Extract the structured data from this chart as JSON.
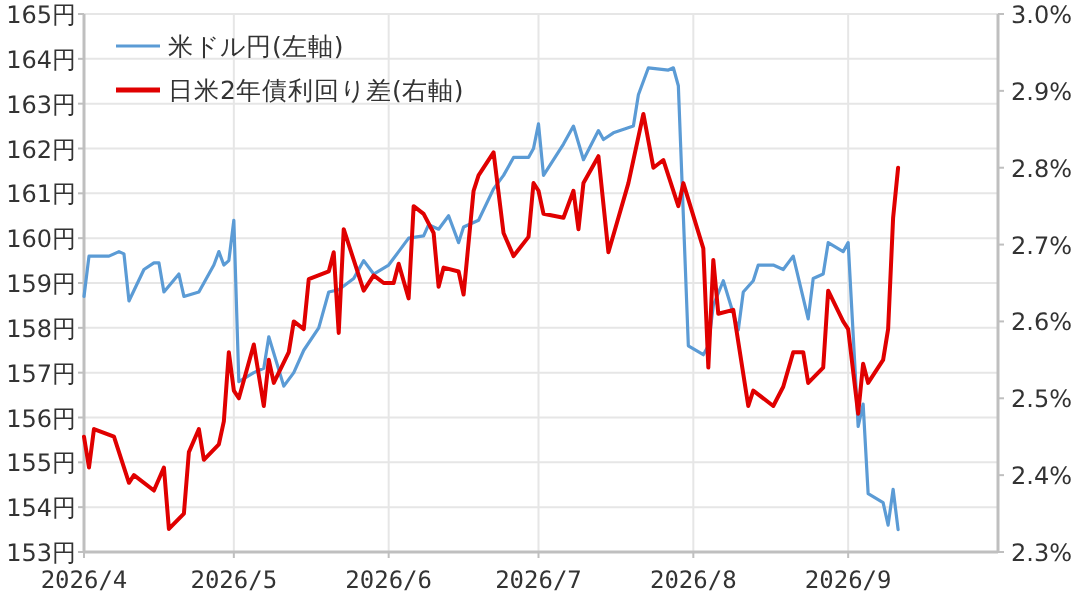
{
  "chart_data": {
    "type": "line",
    "xlim": [
      "2026-04-01",
      "2026-10-01"
    ],
    "xticks": [
      {
        "value": "2026-04-01",
        "label": "2026/4"
      },
      {
        "value": "2026-05-01",
        "label": "2026/5"
      },
      {
        "value": "2026-06-01",
        "label": "2026/6"
      },
      {
        "value": "2026-07-01",
        "label": "2026/7"
      },
      {
        "value": "2026-08-01",
        "label": "2026/8"
      },
      {
        "value": "2026-09-01",
        "label": "2026/9"
      }
    ],
    "ylim": [
      153,
      165
    ],
    "yticks": [
      {
        "value": 153,
        "label": "153円"
      },
      {
        "value": 154,
        "label": "154円"
      },
      {
        "value": 155,
        "label": "155円"
      },
      {
        "value": 156,
        "label": "156円"
      },
      {
        "value": 157,
        "label": "157円"
      },
      {
        "value": 158,
        "label": "158円"
      },
      {
        "value": 159,
        "label": "159円"
      },
      {
        "value": 160,
        "label": "160円"
      },
      {
        "value": 161,
        "label": "161円"
      },
      {
        "value": 162,
        "label": "162円"
      },
      {
        "value": 163,
        "label": "163円"
      },
      {
        "value": 164,
        "label": "164円"
      },
      {
        "value": 165,
        "label": "165円"
      }
    ],
    "y2lim": [
      2.3,
      3.0
    ],
    "y2ticks": [
      {
        "value": 2.3,
        "label": "2.3%"
      },
      {
        "value": 2.4,
        "label": "2.4%"
      },
      {
        "value": 2.5,
        "label": "2.5%"
      },
      {
        "value": 2.6,
        "label": "2.6%"
      },
      {
        "value": 2.7,
        "label": "2.7%"
      },
      {
        "value": 2.8,
        "label": "2.8%"
      },
      {
        "value": 2.9,
        "label": "2.9%"
      },
      {
        "value": 3.0,
        "label": "3.0%"
      }
    ],
    "grid": true,
    "legend": "top left",
    "marker": "none",
    "line_style": "solid",
    "series": [
      {
        "name": "米ドル円(左軸)",
        "color": "#5b9bd5",
        "x": [
          "2026-04-01",
          "2026-04-02",
          "2026-04-06",
          "2026-04-08",
          "2026-04-09",
          "2026-04-10",
          "2026-04-13",
          "2026-04-15",
          "2026-04-16",
          "2026-04-17",
          "2026-04-20",
          "2026-04-21",
          "2026-04-24",
          "2026-04-27",
          "2026-04-28",
          "2026-04-29",
          "2026-04-30",
          "2026-05-01",
          "2026-05-02",
          "2026-05-05",
          "2026-05-07",
          "2026-05-08",
          "2026-05-11",
          "2026-05-13",
          "2026-05-15",
          "2026-05-18",
          "2026-05-20",
          "2026-05-22",
          "2026-05-25",
          "2026-05-27",
          "2026-05-29",
          "2026-06-01",
          "2026-06-03",
          "2026-06-05",
          "2026-06-08",
          "2026-06-09",
          "2026-06-11",
          "2026-06-13",
          "2026-06-15",
          "2026-06-16",
          "2026-06-19",
          "2026-06-22",
          "2026-06-24",
          "2026-06-25",
          "2026-06-26",
          "2026-06-29",
          "2026-06-30",
          "2026-07-01",
          "2026-07-02",
          "2026-07-06",
          "2026-07-08",
          "2026-07-10",
          "2026-07-13",
          "2026-07-14",
          "2026-07-16",
          "2026-07-20",
          "2026-07-21",
          "2026-07-23",
          "2026-07-27",
          "2026-07-28",
          "2026-07-29",
          "2026-07-31",
          "2026-08-03",
          "2026-08-04",
          "2026-08-05",
          "2026-08-07",
          "2026-08-10",
          "2026-08-11",
          "2026-08-13",
          "2026-08-14",
          "2026-08-17",
          "2026-08-19",
          "2026-08-21",
          "2026-08-24",
          "2026-08-25",
          "2026-08-27",
          "2026-08-28",
          "2026-08-31",
          "2026-09-01",
          "2026-09-03",
          "2026-09-04",
          "2026-09-05",
          "2026-09-08",
          "2026-09-09",
          "2026-09-10",
          "2026-09-11"
        ],
        "values": [
          158.7,
          159.6,
          159.6,
          159.7,
          159.65,
          158.6,
          159.3,
          159.45,
          159.45,
          158.8,
          159.2,
          158.7,
          158.8,
          159.4,
          159.7,
          159.4,
          159.5,
          160.4,
          156.8,
          157.0,
          157.1,
          157.8,
          156.7,
          157.0,
          157.5,
          158.0,
          158.8,
          158.85,
          159.1,
          159.5,
          159.2,
          159.4,
          159.7,
          160.0,
          160.05,
          160.3,
          160.2,
          160.5,
          159.9,
          160.25,
          160.4,
          161.1,
          161.4,
          161.6,
          161.8,
          161.8,
          162.0,
          162.55,
          161.4,
          162.1,
          162.5,
          161.75,
          162.4,
          162.2,
          162.35,
          162.5,
          163.2,
          163.8,
          163.75,
          163.8,
          163.4,
          157.6,
          157.4,
          157.6,
          158.5,
          159.05,
          157.95,
          158.8,
          159.05,
          159.4,
          159.4,
          159.3,
          159.6,
          158.2,
          159.1,
          159.2,
          159.9,
          159.7,
          159.9,
          155.8,
          156.3,
          154.3,
          154.1,
          153.6,
          154.4,
          153.5
        ]
      },
      {
        "name": "日米2年債利回り差(右軸)",
        "color": "#e00000",
        "axis": "y2",
        "x": [
          "2026-04-01",
          "2026-04-02",
          "2026-04-03",
          "2026-04-07",
          "2026-04-10",
          "2026-04-11",
          "2026-04-15",
          "2026-04-17",
          "2026-04-18",
          "2026-04-21",
          "2026-04-22",
          "2026-04-24",
          "2026-04-25",
          "2026-04-28",
          "2026-04-29",
          "2026-04-30",
          "2026-05-01",
          "2026-05-02",
          "2026-05-05",
          "2026-05-07",
          "2026-05-08",
          "2026-05-09",
          "2026-05-12",
          "2026-05-13",
          "2026-05-15",
          "2026-05-16",
          "2026-05-20",
          "2026-05-21",
          "2026-05-22",
          "2026-05-23",
          "2026-05-27",
          "2026-05-29",
          "2026-05-31",
          "2026-06-02",
          "2026-06-03",
          "2026-06-05",
          "2026-06-06",
          "2026-06-08",
          "2026-06-10",
          "2026-06-11",
          "2026-06-12",
          "2026-06-15",
          "2026-06-16",
          "2026-06-18",
          "2026-06-19",
          "2026-06-22",
          "2026-06-24",
          "2026-06-26",
          "2026-06-29",
          "2026-06-30",
          "2026-07-01",
          "2026-07-02",
          "2026-07-06",
          "2026-07-08",
          "2026-07-09",
          "2026-07-10",
          "2026-07-13",
          "2026-07-15",
          "2026-07-19",
          "2026-07-22",
          "2026-07-24",
          "2026-07-26",
          "2026-07-29",
          "2026-07-30",
          "2026-08-03",
          "2026-08-04",
          "2026-08-05",
          "2026-08-06",
          "2026-08-09",
          "2026-08-12",
          "2026-08-13",
          "2026-08-17",
          "2026-08-19",
          "2026-08-21",
          "2026-08-23",
          "2026-08-24",
          "2026-08-27",
          "2026-08-28",
          "2026-08-31",
          "2026-09-01",
          "2026-09-03",
          "2026-09-04",
          "2026-09-05",
          "2026-09-08",
          "2026-09-09",
          "2026-09-10",
          "2026-09-11"
        ],
        "values": [
          2.45,
          2.41,
          2.46,
          2.45,
          2.39,
          2.4,
          2.38,
          2.41,
          2.33,
          2.35,
          2.43,
          2.46,
          2.42,
          2.44,
          2.47,
          2.56,
          2.51,
          2.5,
          2.57,
          2.49,
          2.55,
          2.52,
          2.56,
          2.6,
          2.59,
          2.655,
          2.665,
          2.69,
          2.585,
          2.72,
          2.64,
          2.66,
          2.65,
          2.65,
          2.675,
          2.63,
          2.75,
          2.74,
          2.715,
          2.645,
          2.67,
          2.665,
          2.635,
          2.77,
          2.79,
          2.82,
          2.715,
          2.685,
          2.71,
          2.78,
          2.77,
          2.74,
          2.735,
          2.77,
          2.72,
          2.78,
          2.815,
          2.69,
          2.78,
          2.87,
          2.8,
          2.81,
          2.75,
          2.78,
          2.695,
          2.54,
          2.68,
          2.61,
          2.615,
          2.49,
          2.51,
          2.49,
          2.515,
          2.56,
          2.56,
          2.52,
          2.54,
          2.64,
          2.6,
          2.59,
          2.48,
          2.545,
          2.52,
          2.55,
          2.59,
          2.735,
          2.8
        ]
      }
    ]
  }
}
